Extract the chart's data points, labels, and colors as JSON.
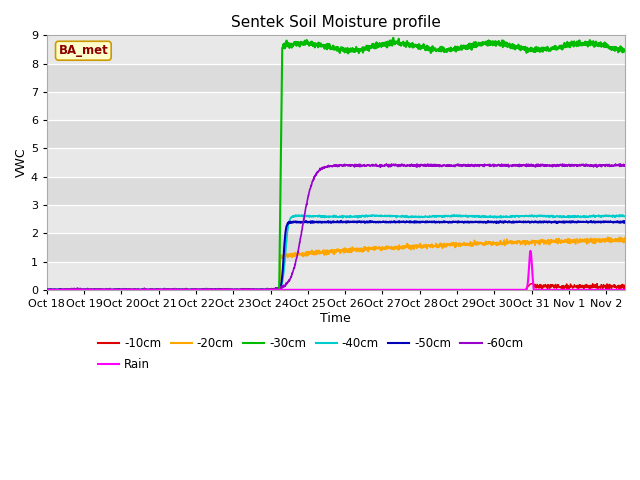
{
  "title": "Sentek Soil Moisture profile",
  "xlabel": "Time",
  "ylabel": "VWC",
  "site_label": "BA_met",
  "ylim": [
    0.0,
    9.0
  ],
  "yticks": [
    0.0,
    1.0,
    2.0,
    3.0,
    4.0,
    5.0,
    6.0,
    7.0,
    8.0,
    9.0
  ],
  "xtick_labels": [
    "Oct 18",
    "Oct 19",
    "Oct 20",
    "Oct 21",
    "Oct 22",
    "Oct 23",
    "Oct 24",
    "Oct 25",
    "Oct 26",
    "Oct 27",
    "Oct 28",
    "Oct 29",
    "Oct 30",
    "Oct 31",
    "Nov 1",
    "Nov 2"
  ],
  "background_color": "#dcdcdc",
  "alt_band_color": "#e8e8e8",
  "lines": {
    "-10cm": {
      "color": "#dd0000",
      "lw": 1.0
    },
    "-20cm": {
      "color": "#ffa500",
      "lw": 1.2
    },
    "-30cm": {
      "color": "#00bb00",
      "lw": 1.5
    },
    "-40cm": {
      "color": "#00cccc",
      "lw": 1.2
    },
    "-50cm": {
      "color": "#0000bb",
      "lw": 1.5
    },
    "-60cm": {
      "color": "#9900cc",
      "lw": 1.2
    },
    "Rain": {
      "color": "#ff00ff",
      "lw": 1.5
    }
  },
  "legend_order": [
    "-10cm",
    "-20cm",
    "-30cm",
    "-40cm",
    "-50cm",
    "-60cm",
    "Rain"
  ]
}
